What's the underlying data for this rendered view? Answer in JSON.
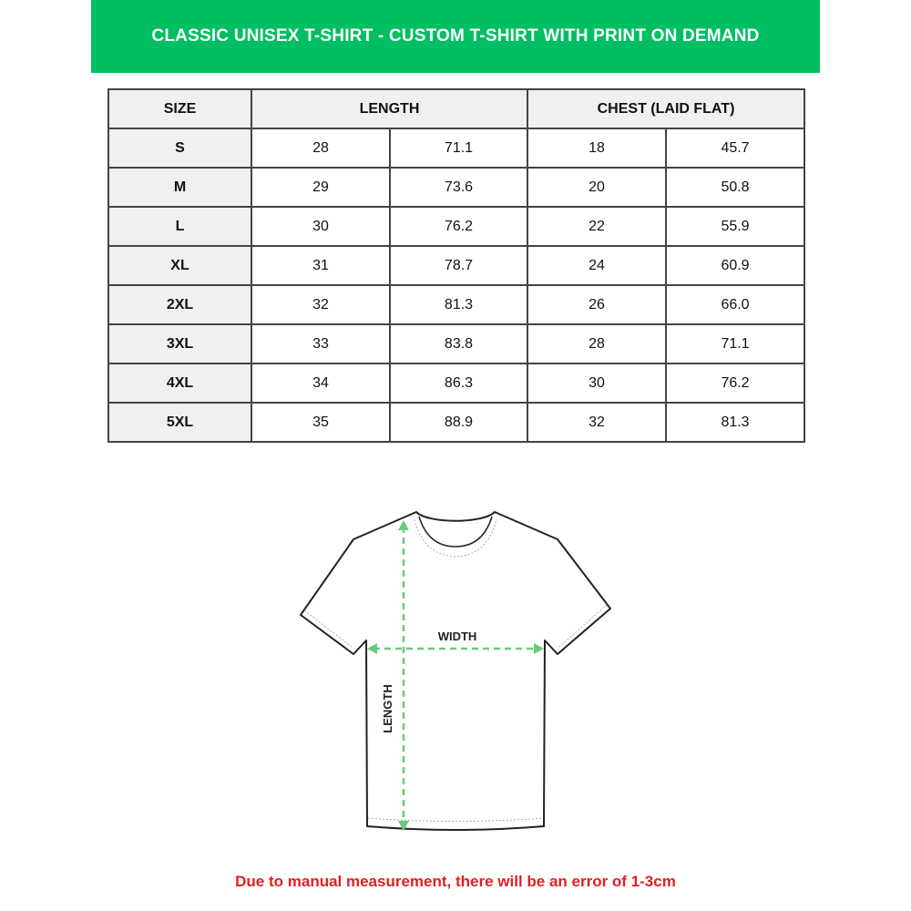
{
  "title": "CLASSIC UNISEX T-SHIRT - CUSTOM T-SHIRT WITH PRINT ON DEMAND",
  "table": {
    "headers": {
      "size": "SIZE",
      "length": "LENGTH",
      "chest": "CHEST (LAID FLAT)"
    },
    "rows": [
      {
        "size": "S",
        "length_in": "28",
        "length_cm": "71.1",
        "chest_in": "18",
        "chest_cm": "45.7"
      },
      {
        "size": "M",
        "length_in": "29",
        "length_cm": "73.6",
        "chest_in": "20",
        "chest_cm": "50.8"
      },
      {
        "size": "L",
        "length_in": "30",
        "length_cm": "76.2",
        "chest_in": "22",
        "chest_cm": "55.9"
      },
      {
        "size": "XL",
        "length_in": "31",
        "length_cm": "78.7",
        "chest_in": "24",
        "chest_cm": "60.9"
      },
      {
        "size": "2XL",
        "length_in": "32",
        "length_cm": "81.3",
        "chest_in": "26",
        "chest_cm": "66.0"
      },
      {
        "size": "3XL",
        "length_in": "33",
        "length_cm": "83.8",
        "chest_in": "28",
        "chest_cm": "71.1"
      },
      {
        "size": "4XL",
        "length_in": "34",
        "length_cm": "86.3",
        "chest_in": "30",
        "chest_cm": "76.2"
      },
      {
        "size": "5XL",
        "length_in": "35",
        "length_cm": "88.9",
        "chest_in": "32",
        "chest_cm": "81.3"
      }
    ]
  },
  "diagram": {
    "width_label": "WIDTH",
    "length_label": "LENGTH"
  },
  "note": "Due to manual measurement, there will be an error of 1-3cm",
  "colors": {
    "banner": "#00bf63",
    "arrow": "#6cc97a",
    "note": "#e0201e"
  }
}
